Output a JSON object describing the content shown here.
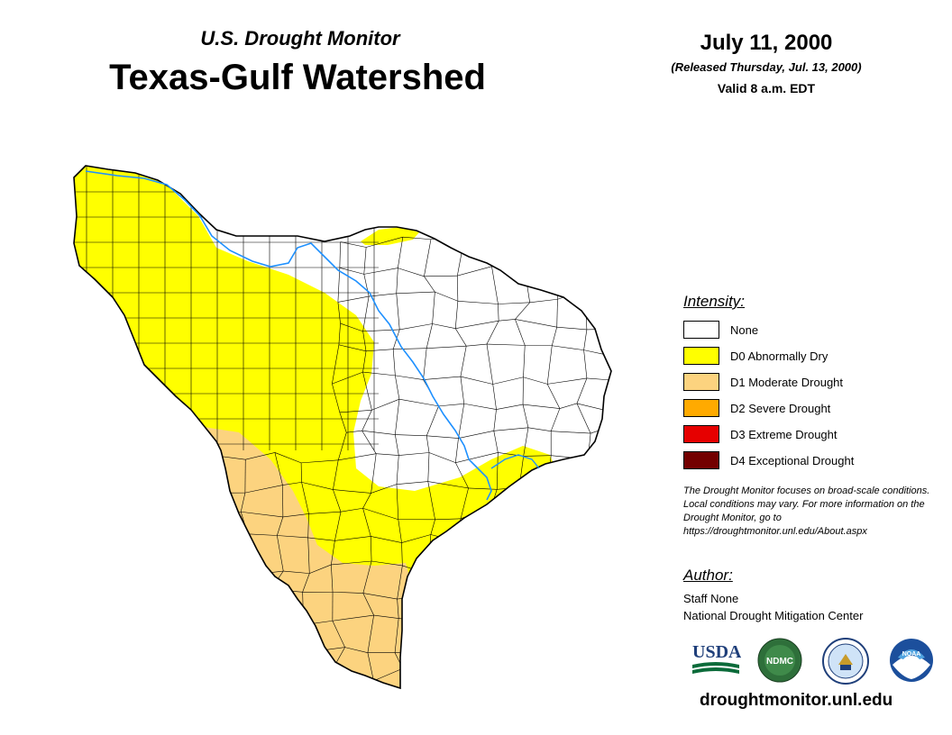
{
  "header": {
    "subtitle": "U.S. Drought Monitor",
    "title": "Texas-Gulf Watershed",
    "date": "July 11, 2000",
    "released": "(Released Thursday, Jul. 13, 2000)",
    "valid": "Valid 8 a.m. EDT"
  },
  "legend": {
    "title": "Intensity:",
    "items": [
      {
        "label": "None",
        "color": "#ffffff"
      },
      {
        "label": "D0 Abnormally Dry",
        "color": "#ffff00"
      },
      {
        "label": "D1 Moderate Drought",
        "color": "#fcd37f"
      },
      {
        "label": "D2 Severe Drought",
        "color": "#ffaa00"
      },
      {
        "label": "D3 Extreme Drought",
        "color": "#e60000"
      },
      {
        "label": "D4 Exceptional Drought",
        "color": "#730000"
      }
    ]
  },
  "note": "The Drought Monitor focuses on broad-scale conditions. Local conditions may vary. For more information on the Drought Monitor, go to https://droughtmonitor.unl.edu/About.aspx",
  "author": {
    "title": "Author:",
    "name": "Staff None",
    "org": "National Drought Mitigation Center"
  },
  "logos": [
    {
      "name": "usda-logo",
      "text": "USDA"
    },
    {
      "name": "ndmc-logo",
      "text": "NDMC"
    },
    {
      "name": "doc-logo",
      "text": ""
    },
    {
      "name": "noaa-logo",
      "text": "NOAA"
    }
  ],
  "site_url": "droughtmonitor.unl.edu",
  "map": {
    "region": "Texas-Gulf Watershed",
    "river_color": "#1e90ff",
    "county_line_color": "#000000"
  }
}
